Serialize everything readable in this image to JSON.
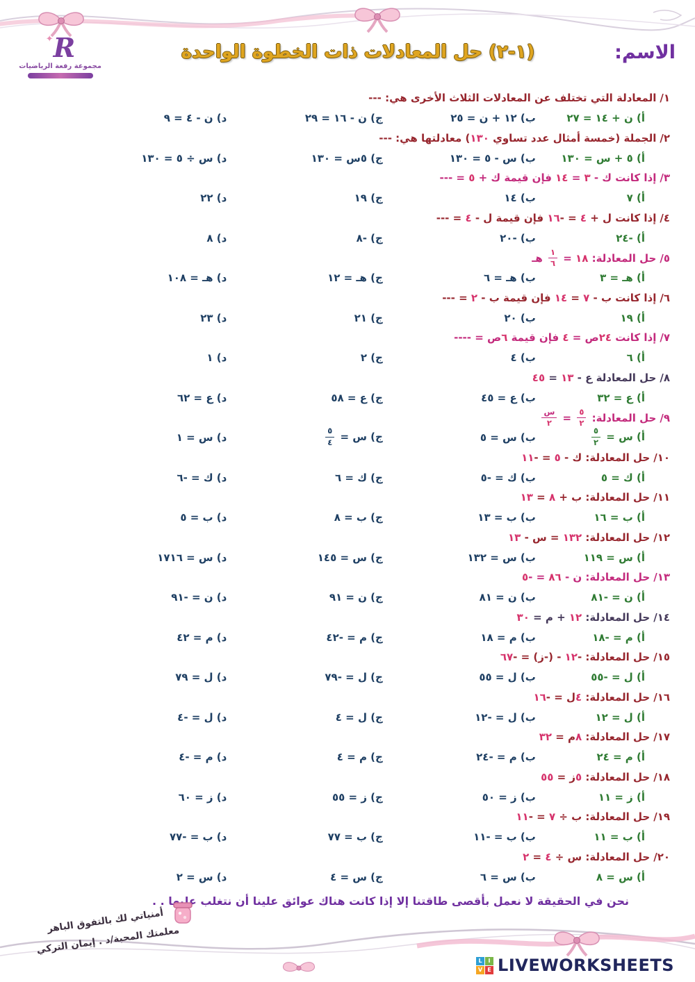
{
  "header": {
    "name_label": "الاسم:",
    "title": "(١-٢) حل المعادلات ذات الخطوة الواحدة",
    "logo": {
      "letter": "R",
      "org": "مجموعة رفعة الرياضيات"
    }
  },
  "colors": {
    "maroon": "#97262e",
    "magenta": "#c32a7c",
    "dark": "#45395a",
    "option_a": "#2f7b33",
    "option_bcd": "#1e3f63",
    "digits": "#d6336c",
    "purple": "#7030a0",
    "gold": "#dfa520",
    "brand_text": "#20265c"
  },
  "questions": [
    {
      "num": "١/",
      "color": "maroon",
      "text": "المعادلة التي تختلف عن المعادلات الثلاث الأخرى هي: ---",
      "options": [
        "أ) ن + ١٤ = ٢٧",
        "ب) ١٢ + ن = ٢٥",
        "ج) ن - ١٦ = ٢٩",
        "د) ن - ٤ = ٩"
      ]
    },
    {
      "num": "٢/",
      "color": "maroon",
      "text": "الجملة (خمسة أمثال عدد تساوي ١٣٠) معادلتها هي: ---",
      "options": [
        "أ) ٥ + س = ١٣٠",
        "ب) س - ٥ = ١٣٠",
        "ج) ٥س = ١٣٠",
        "د) س ÷ ٥ = ١٣٠"
      ]
    },
    {
      "num": "٣/",
      "color": "magenta",
      "text": "إذا كانت ك - ٣ = ١٤ فإن قيمة ك + ٥ = ---",
      "options": [
        "أ) ٧",
        "ب) ١٤",
        "ج) ١٩",
        "د) ٢٢"
      ]
    },
    {
      "num": "٤/",
      "color": "maroon",
      "text": "إذا كانت ل + ٤ = -١٦ فإن قيمة ل - ٤ = ---",
      "options": [
        "أ) -٢٤",
        "ب) -٢٠",
        "ج) -٨",
        "د) ٨"
      ]
    },
    {
      "num": "٥/",
      "color": "magenta",
      "text": "حل المعادلة: ١٨ = [١/٦] هـ",
      "options": [
        "أ) هـ = ٣",
        "ب) هـ = ٦",
        "ج) هـ = ١٢",
        "د) هـ = ١٠٨"
      ]
    },
    {
      "num": "٦/",
      "color": "maroon",
      "text": "إذا كانت ب - ٧ = ١٤ فإن قيمة ب - ٢ = ---",
      "options": [
        "أ) ١٩",
        "ب) ٢٠",
        "ج) ٢١",
        "د) ٢٣"
      ]
    },
    {
      "num": "٧/",
      "color": "magenta",
      "text": "إذا كانت ٢٤ص = ٤ فإن قيمة ٦ص = ----",
      "options": [
        "أ) ٦",
        "ب) ٤",
        "ج) ٢",
        "د) ١"
      ]
    },
    {
      "num": "٨/",
      "color": "dark",
      "text": "حل المعادلة ع - ١٣ = ٤٥",
      "options": [
        "أ) ع = ٣٢",
        "ب) ع = ٤٥",
        "ج) ع = ٥٨",
        "د) ع = ٦٢"
      ]
    },
    {
      "num": "٩/",
      "color": "magenta",
      "text": "حل المعادلة: [٥/٢] = [س/٢]",
      "options": [
        "أ) س = [٥/٢]",
        "ب) س = ٥",
        "ج) س = [٥/٤]",
        "د) س = ١"
      ]
    },
    {
      "num": "١٠/",
      "color": "maroon",
      "text": "حل المعادلة: ك - ٥ = -١١",
      "options": [
        "أ) ك = ٥",
        "ب) ك = -٥",
        "ج) ك = ٦",
        "د) ك = -٦"
      ]
    },
    {
      "num": "١١/",
      "color": "maroon",
      "text": "حل المعادلة: ب + ٨ = ١٣",
      "options": [
        "أ) ب = ١٦",
        "ب) ب = ١٣",
        "ج) ب = ٨",
        "د) ب = ٥"
      ]
    },
    {
      "num": "١٢/",
      "color": "maroon",
      "text": "حل المعادلة: ١٣٢ = س - ١٣",
      "options": [
        "أ) س = ١١٩",
        "ب) س = ١٣٢",
        "ج) س = ١٤٥",
        "د) س = ١٧١٦"
      ]
    },
    {
      "num": "١٣/",
      "color": "magenta",
      "text": "حل المعادلة: ن - ٨٦ = -٥",
      "options": [
        "أ) ن = -٨١",
        "ب) ن = ٨١",
        "ج) ن = ٩١",
        "د) ن = -٩١"
      ]
    },
    {
      "num": "١٤/",
      "color": "dark",
      "text": "حل المعادلة: ١٢ + م = ٣٠",
      "options": [
        "أ) م = -١٨",
        "ب) م = ١٨",
        "ج) م = -٤٢",
        "د) م = ٤٢"
      ]
    },
    {
      "num": "١٥/",
      "color": "maroon",
      "text": "حل المعادلة: -١٢ - (-ز) = -٦٧",
      "options": [
        "أ) ل = -٥٥",
        "ب) ل = ٥٥",
        "ج) ل = -٧٩",
        "د) ل = ٧٩"
      ]
    },
    {
      "num": "١٦/",
      "color": "maroon",
      "text": "حل المعادلة: ٤ل = -١٦",
      "options": [
        "أ) ل = ١٢",
        "ب) ل = -١٢",
        "ج) ل = ٤",
        "د) ل = -٤"
      ]
    },
    {
      "num": "١٧/",
      "color": "maroon",
      "text": "حل المعادلة: ٨م = ٣٢",
      "options": [
        "أ) م = ٢٤",
        "ب) م = -٢٤",
        "ج) م = ٤",
        "د) م = -٤"
      ]
    },
    {
      "num": "١٨/",
      "color": "maroon",
      "text": "حل المعادلة: ٥ز = ٥٥",
      "options": [
        "أ) ز = ١١",
        "ب) ز = ٥٠",
        "ج) ز = ٥٥",
        "د) ز = ٦٠"
      ]
    },
    {
      "num": "١٩/",
      "color": "maroon",
      "text": "حل المعادلة: ب ÷ ٧ = -١١",
      "options": [
        "أ) ب = ١١",
        "ب) ب = -١١",
        "ج) ب = ٧٧",
        "د) ب = -٧٧"
      ]
    },
    {
      "num": "٢٠/",
      "color": "maroon",
      "text": "حل المعادلة: س ÷ ٤ = ٢",
      "options": [
        "أ) س = ٨",
        "ب) س = ٦",
        "ج) س = ٤",
        "د) س = ٢"
      ]
    }
  ],
  "footer": {
    "quote": "نحن في الحقيقة لا نعمل بأقصى طاقتنا إلا إذا كانت هناك عوائق علينا أن نتغلب عليها . .",
    "wishes": "أمنياتي لك بالتفوق الباهر",
    "teacher": "معلمتك المحبة/د . إيمان التركي",
    "brand": {
      "tiles": [
        {
          "letter": "L",
          "color": "#2e9fd4"
        },
        {
          "letter": "I",
          "color": "#7ab648"
        },
        {
          "letter": "V",
          "color": "#f5a623"
        },
        {
          "letter": "E",
          "color": "#e23c3c"
        }
      ],
      "text": "LIVEWORKSHEETS"
    }
  }
}
